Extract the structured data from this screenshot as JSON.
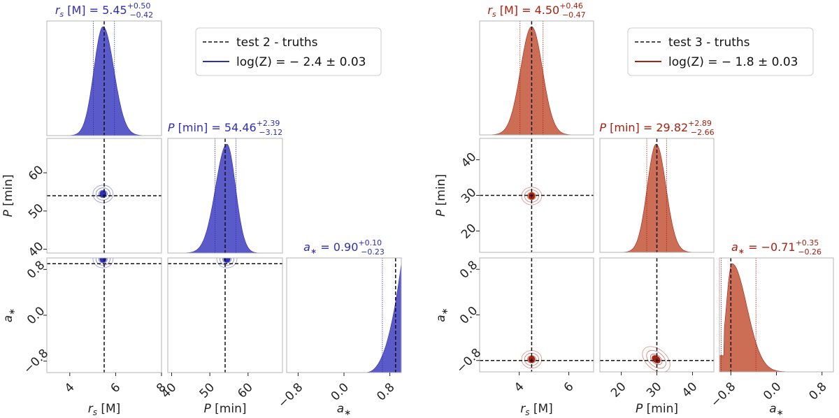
{
  "chart_data": [
    {
      "type": "corner",
      "test": "test 2",
      "color": "#2d2db8",
      "fill": "#5a5ac9",
      "legend": {
        "truths": "test 2 - truths",
        "evidence": "log(Z) = − 2.4 ± 0.03"
      },
      "parameters": [
        {
          "key": "rs",
          "label": "r_s [M]",
          "truth": 5.5,
          "median": 5.45,
          "plus": 0.5,
          "minus": 0.42,
          "range": [
            3,
            8
          ],
          "title_main": " [M] = 5.45",
          "title_plus": "+0.50",
          "title_minus": "−0.42",
          "ticks": [
            4,
            6,
            8
          ],
          "tick_labels": [
            "4",
            "6",
            "8"
          ]
        },
        {
          "key": "P",
          "label": "P [min]",
          "truth": 54,
          "median": 54.46,
          "plus": 2.39,
          "minus": 3.12,
          "range": [
            39,
            69
          ],
          "title_main": " [min] = 54.46",
          "title_plus": "+2.39",
          "title_minus": "−3.12",
          "ticks": [
            40,
            50,
            60
          ],
          "tick_labels": [
            "40",
            "50",
            "60"
          ]
        },
        {
          "key": "a",
          "label": "a_*",
          "truth": 0.9,
          "median": 0.9,
          "plus": 0.1,
          "minus": 0.23,
          "range": [
            -1.0,
            1.0
          ],
          "title_main": " = 0.90",
          "title_plus": "+0.10",
          "title_minus": "−0.23",
          "ticks": [
            -0.8,
            0.0,
            0.8
          ],
          "tick_labels": [
            "−0.8",
            "0.0",
            "0.8"
          ]
        }
      ],
      "bounds_1d": [
        [
          5.03,
          5.95
        ],
        [
          51.34,
          56.85
        ],
        [
          0.67,
          1.0
        ]
      ]
    },
    {
      "type": "corner",
      "test": "test 3",
      "color": "#a82010",
      "fill": "#cc6e55",
      "legend": {
        "truths": "test 3 - truths",
        "evidence": "log(Z) = − 1.8 ± 0.03"
      },
      "parameters": [
        {
          "key": "rs",
          "label": "r_s [M]",
          "truth": 4.5,
          "median": 4.5,
          "plus": 0.46,
          "minus": 0.47,
          "range": [
            2.4,
            7.0
          ],
          "title_main": " [M] = 4.50",
          "title_plus": "+0.46",
          "title_minus": "−0.47",
          "ticks": [
            4,
            6
          ],
          "tick_labels": [
            "4",
            "6"
          ]
        },
        {
          "key": "P",
          "label": "P [min]",
          "truth": 30,
          "median": 29.82,
          "plus": 2.89,
          "minus": 2.66,
          "range": [
            14,
            46
          ],
          "title_main": " [min] = 29.82",
          "title_plus": "+2.89",
          "title_minus": "−2.66",
          "ticks": [
            20,
            30,
            40
          ],
          "tick_labels": [
            "20",
            "30",
            "40"
          ]
        },
        {
          "key": "a",
          "label": "a_*",
          "truth": -0.8,
          "median": -0.71,
          "plus": 0.35,
          "minus": 0.26,
          "range": [
            -1.0,
            1.0
          ],
          "title_main": " = −0.71",
          "title_plus": "+0.35",
          "title_minus": "−0.26",
          "ticks": [
            -0.8,
            0.0,
            0.8
          ],
          "tick_labels": [
            "−0.8",
            "0.0",
            "0.8"
          ]
        }
      ],
      "bounds_1d": [
        [
          4.03,
          4.96
        ],
        [
          27.16,
          32.71
        ],
        [
          -0.97,
          -0.36
        ]
      ]
    }
  ]
}
